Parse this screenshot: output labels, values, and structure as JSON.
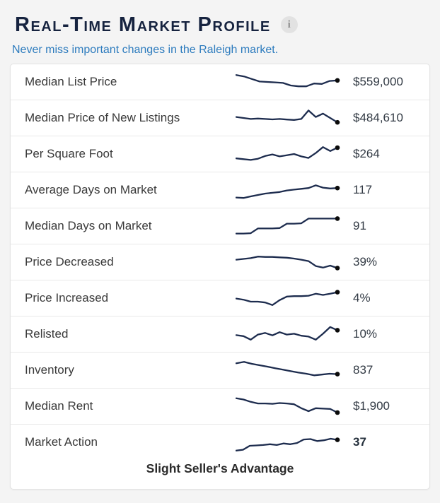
{
  "header": {
    "title": "Real-Time Market Profile",
    "info_icon": "i"
  },
  "subtitle": "Never miss important changes in the Raleigh market.",
  "market_action_status": "Slight Seller's Advantage",
  "colors": {
    "page_background": "#f4f4f4",
    "title_navy": "#16233f",
    "subtitle_blue": "#2e7cbe",
    "sparkline_navy": "#1d2c4e",
    "sparkline_dot": "#0a0a0a",
    "card_border": "#e3e3e3",
    "row_divider": "#e9e9e9",
    "label_text": "#3a3a3a",
    "value_text": "#323a44"
  },
  "chart_data": {
    "type": "line",
    "note": "Sparkline trend shapes, normalized 0-100 (100 = visual high point); only current values are labeled in the UI.",
    "series": [
      {
        "name": "Median List Price",
        "current": "$559,000",
        "values": [
          85,
          78,
          65,
          52,
          50,
          48,
          45,
          32,
          28,
          28,
          42,
          40,
          55,
          58
        ]
      },
      {
        "name": "Median Price of New Listings",
        "current": "$484,610",
        "values": [
          55,
          50,
          45,
          47,
          45,
          43,
          45,
          42,
          40,
          45,
          88,
          55,
          72,
          50,
          28
        ]
      },
      {
        "name": "Per Square Foot",
        "current": "$264",
        "values": [
          28,
          24,
          20,
          26,
          40,
          48,
          38,
          44,
          50,
          38,
          30,
          55,
          85,
          65,
          82
        ]
      },
      {
        "name": "Average Days on Market",
        "current": "117",
        "values": [
          12,
          10,
          18,
          25,
          32,
          36,
          40,
          48,
          52,
          56,
          60,
          74,
          62,
          58,
          60
        ]
      },
      {
        "name": "Median Days on Market",
        "current": "91",
        "values": [
          12,
          12,
          14,
          38,
          38,
          38,
          40,
          62,
          62,
          64,
          88,
          88,
          88,
          88,
          88
        ]
      },
      {
        "name": "Price Decreased",
        "current": "39%",
        "values": [
          62,
          66,
          70,
          78,
          76,
          76,
          74,
          72,
          68,
          62,
          55,
          30,
          22,
          32,
          20
        ]
      },
      {
        "name": "Price Increased",
        "current": "4%",
        "values": [
          48,
          42,
          32,
          32,
          28,
          15,
          40,
          58,
          60,
          60,
          62,
          72,
          66,
          72,
          80
        ]
      },
      {
        "name": "Relisted",
        "current": "10%",
        "values": [
          45,
          40,
          22,
          48,
          56,
          44,
          60,
          48,
          52,
          42,
          38,
          22,
          52,
          86,
          70
        ]
      },
      {
        "name": "Inventory",
        "current": "837",
        "values": [
          85,
          92,
          82,
          75,
          68,
          60,
          53,
          45,
          38,
          32,
          24,
          28,
          32,
          30
        ]
      },
      {
        "name": "Median Rent",
        "current": "$1,900",
        "values": [
          90,
          84,
          72,
          64,
          64,
          62,
          66,
          64,
          60,
          40,
          25,
          40,
          38,
          36,
          18
        ]
      },
      {
        "name": "Market Action",
        "current": "37",
        "values": [
          8,
          12,
          32,
          34,
          36,
          40,
          36,
          44,
          40,
          46,
          64,
          66,
          56,
          60,
          68,
          62
        ]
      }
    ]
  },
  "rows": [
    {
      "label": "Median List Price",
      "value": "$559,000",
      "bold": false
    },
    {
      "label": "Median Price of New Listings",
      "value": "$484,610",
      "bold": false
    },
    {
      "label": "Per Square Foot",
      "value": "$264",
      "bold": false
    },
    {
      "label": "Average Days on Market",
      "value": "117",
      "bold": false
    },
    {
      "label": "Median Days on Market",
      "value": "91",
      "bold": false
    },
    {
      "label": "Price Decreased",
      "value": "39%",
      "bold": false
    },
    {
      "label": "Price Increased",
      "value": "4%",
      "bold": false
    },
    {
      "label": "Relisted",
      "value": "10%",
      "bold": false
    },
    {
      "label": "Inventory",
      "value": "837",
      "bold": false
    },
    {
      "label": "Median Rent",
      "value": "$1,900",
      "bold": false
    },
    {
      "label": "Market Action",
      "value": "37",
      "bold": true
    }
  ]
}
